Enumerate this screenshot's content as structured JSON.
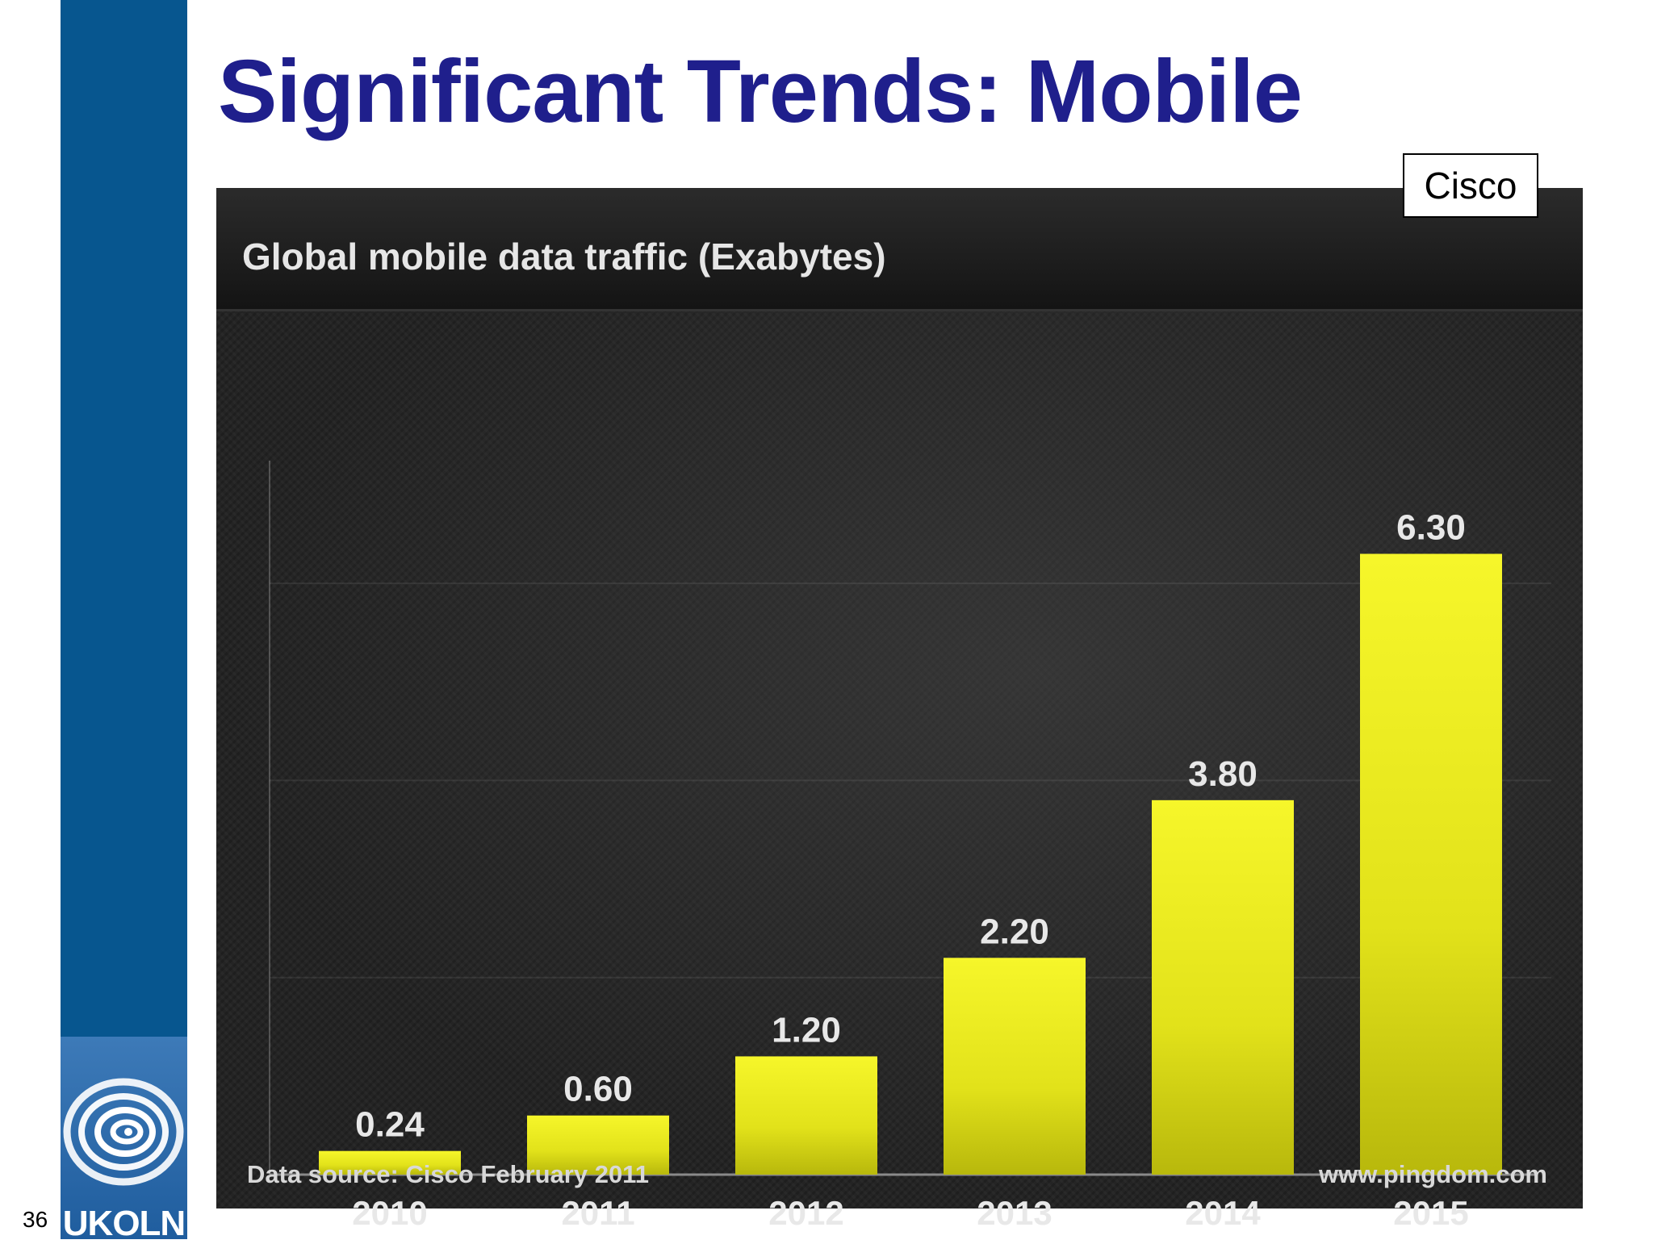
{
  "slide": {
    "title": "Significant Trends: Mobile",
    "page_number": "36",
    "badge": "Cisco"
  },
  "logo": {
    "text": "UKOLN"
  },
  "colors": {
    "sidebar": "#07568f",
    "title": "#1f1f8c",
    "bar": "#e8e818",
    "panel": "#1c1c1c"
  },
  "chart_data": {
    "type": "bar",
    "title": "Global mobile data traffic (Exabytes)",
    "categories": [
      "2010",
      "2011",
      "2012",
      "2013",
      "2014",
      "2015"
    ],
    "values": [
      0.24,
      0.6,
      1.2,
      2.2,
      3.8,
      6.3
    ],
    "data_labels": [
      "0.24",
      "0.60",
      "1.20",
      "2.20",
      "3.80",
      "6.30"
    ],
    "xlabel": "",
    "ylabel": "",
    "ylim": [
      0,
      7
    ],
    "grid": true,
    "source": "Data source: Cisco February 2011",
    "site": "www.pingdom.com"
  }
}
